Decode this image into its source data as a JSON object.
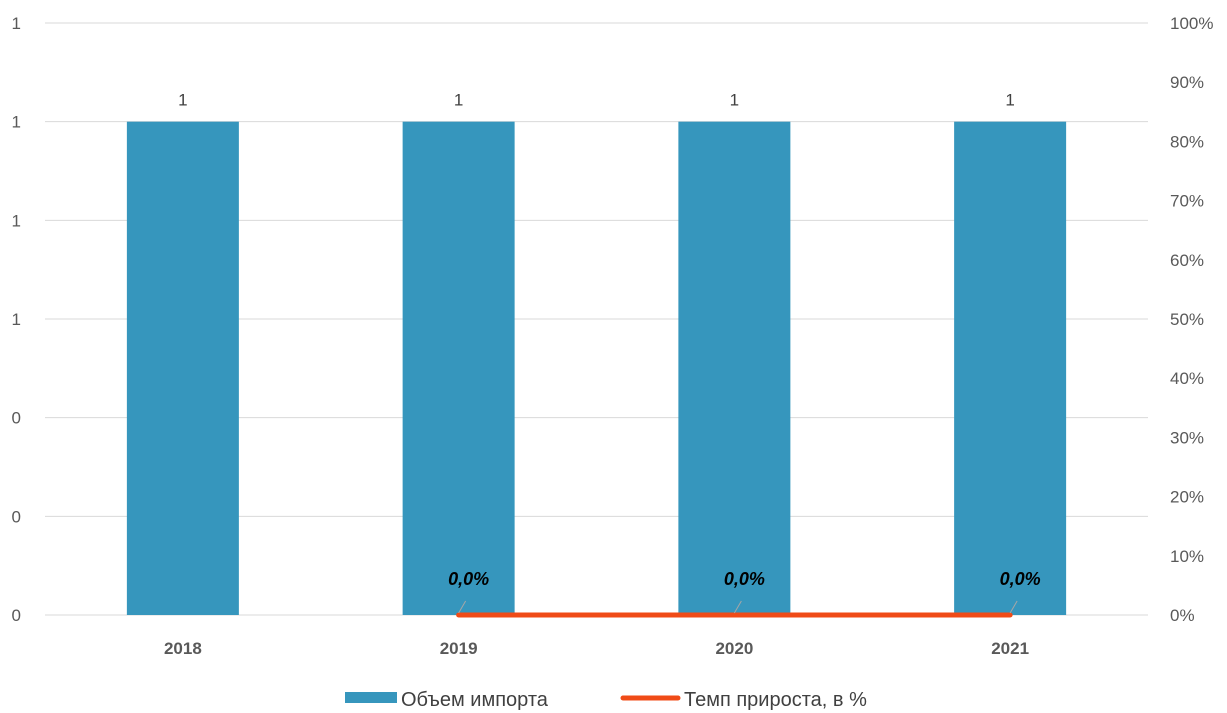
{
  "chart_data": {
    "type": "bar",
    "categories": [
      "2018",
      "2019",
      "2020",
      "2021"
    ],
    "series": [
      {
        "name": "Объем импорта",
        "kind": "bar",
        "axis": "left",
        "values": [
          1,
          1,
          1,
          1
        ],
        "value_labels": [
          "1",
          "1",
          "1",
          "1"
        ],
        "color": "#3696BD"
      },
      {
        "name": "Темп прироста, в %",
        "kind": "line",
        "axis": "right",
        "x": [
          "2019",
          "2020",
          "2021"
        ],
        "values": [
          0,
          0,
          0
        ],
        "value_labels": [
          "0,0%",
          "0,0%",
          "0,0%"
        ],
        "color": "#F04B17"
      }
    ],
    "left_axis": {
      "tick_labels": [
        "0",
        "0",
        "0",
        "1",
        "1",
        "1",
        "1"
      ],
      "ylim": [
        0,
        1.2
      ]
    },
    "right_axis": {
      "tick_labels": [
        "0%",
        "10%",
        "20%",
        "30%",
        "40%",
        "50%",
        "60%",
        "70%",
        "80%",
        "90%",
        "100%"
      ],
      "ylim": [
        0,
        100
      ]
    },
    "grid": true,
    "legend_position": "bottom",
    "title": "",
    "xlabel": "",
    "ylabel": ""
  }
}
